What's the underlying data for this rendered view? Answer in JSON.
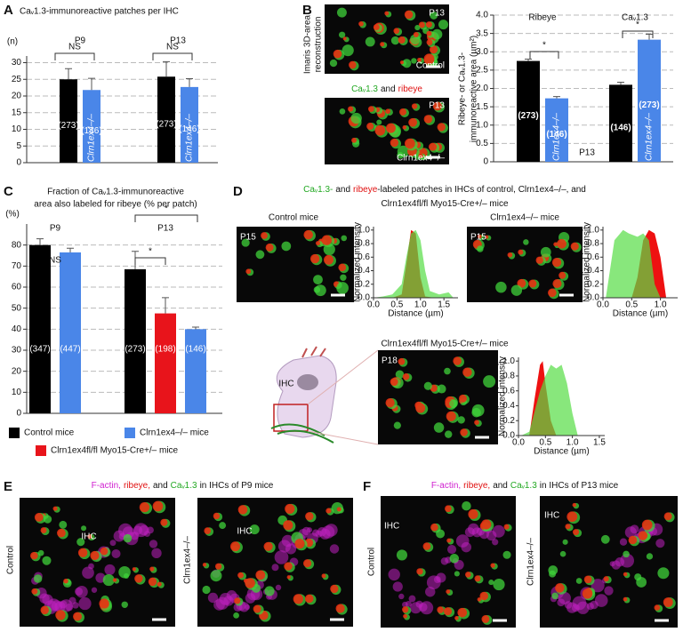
{
  "figure": {
    "panel_labels": [
      "A",
      "B",
      "C",
      "D",
      "E",
      "F"
    ],
    "b_side_label": [
      "Imaris 3D-area",
      "reconstruction"
    ],
    "b_image_ages": [
      "P13",
      "P13"
    ],
    "b_image_labels": [
      "Control",
      "Clrn1ex4–/–"
    ],
    "b_caption": [
      {
        "text": "Caᵥ1.3",
        "color": "#22a822"
      },
      {
        "text": "and",
        "color": "#111111"
      },
      {
        "text": "ribeye",
        "color": "#e01010"
      }
    ],
    "b_p13": "P13",
    "d_title": [
      [
        {
          "text": "Caᵥ1.3-",
          "color": "#22a822"
        },
        {
          "text": "and",
          "color": "#111111"
        },
        {
          "text": "ribeye",
          "color": "#e01010"
        },
        {
          "text": "-labeled patches in IHCs of control, Clrn1ex4–/–, and",
          "color": "#111111"
        }
      ],
      [
        {
          "text": "Clrn1ex4fl/fl Myo15-Cre+/– mice",
          "color": "#111111"
        }
      ]
    ],
    "d_image_labels": [
      "Control mice",
      "Clrn1ex4–/– mice",
      "Clrn1ex4fl/fl Myo15-Cre+/– mice"
    ],
    "d_ages": [
      "P15",
      "P15",
      "P18"
    ],
    "d_ihc": "IHC",
    "e_caption": [
      {
        "text": "F-actin,",
        "color": "#d020d0"
      },
      {
        "text": "ribeye,",
        "color": "#e01010"
      },
      {
        "text": "and",
        "color": "#111111"
      },
      {
        "text": "Caᵥ1.3",
        "color": "#22a822"
      },
      {
        "text": "in IHCs of P9 mice",
        "color": "#111111"
      }
    ],
    "e_image_labels": [
      "Control",
      "Clrn1ex4–/–"
    ],
    "e_ihc": [
      "IHC",
      "IHC"
    ],
    "f_caption": [
      {
        "text": "F-actin,",
        "color": "#d020d0"
      },
      {
        "text": "ribeye,",
        "color": "#e01010"
      },
      {
        "text": "and",
        "color": "#111111"
      },
      {
        "text": "Caᵥ1.3",
        "color": "#22a822"
      },
      {
        "text": "in IHCs of P13 mice",
        "color": "#111111"
      }
    ],
    "f_image_labels": [
      "Control",
      "Clrn1ex4–/–"
    ],
    "f_ihc": [
      "IHC",
      "IHC"
    ]
  },
  "chart_data": [
    {
      "type": "bar",
      "title": "Caᵥ1.3-immunoreactive patches per IHC",
      "ylabel": [
        "(n)"
      ],
      "categories": [
        "P9",
        "P13"
      ],
      "series": [
        {
          "color": "#000000",
          "values": [
            25,
            25.8
          ],
          "errors": [
            3.2,
            4.5
          ],
          "n_labels": [
            "(273)",
            "(273)"
          ]
        },
        {
          "name": "Clrn1ex4–/–",
          "color": "#4a86e8",
          "values": [
            21.8,
            22.7
          ],
          "errors": [
            3.5,
            2.5
          ],
          "n_labels": [
            "(146)",
            "(146)"
          ]
        }
      ],
      "annotations": [
        "NS",
        "NS"
      ],
      "ylim": [
        0,
        32
      ],
      "yticks": [
        0,
        5,
        10,
        15,
        20,
        25,
        30
      ],
      "grid": true
    },
    {
      "type": "bar",
      "ylabel": [
        "Ribeye- or Caᵥ1.3-",
        "immunoreactive area (µm²)"
      ],
      "categories": [
        "Ribeye",
        "Caᵥ1.3"
      ],
      "series": [
        {
          "color": "#000000",
          "values": [
            2.75,
            2.1
          ],
          "errors": [
            0.05,
            0.07
          ],
          "n_labels": [
            "(273)",
            "(146)"
          ]
        },
        {
          "name": "Clrn1ex4–/–",
          "color": "#4a86e8",
          "values": [
            1.73,
            3.33
          ],
          "errors": [
            0.05,
            0.15
          ],
          "n_labels": [
            "(146)",
            "(273)"
          ]
        }
      ],
      "annotations": [
        "*",
        "*"
      ],
      "ylim": [
        0,
        4.0
      ],
      "yticks": [
        0,
        0.5,
        {
          "value": 1,
          "label": "1.0"
        },
        1.5,
        {
          "value": 2,
          "label": "2.0"
        },
        2.5,
        {
          "value": 3,
          "label": "3.0"
        },
        3.5,
        {
          "value": 4,
          "label": "4.0"
        }
      ],
      "grid": true
    },
    {
      "type": "bar",
      "title": [
        "Fraction of Caᵥ1.3-immunoreactive",
        "area also labeled for ribeye (% per patch)"
      ],
      "ylabel": [
        "(%)"
      ],
      "categories": [
        "P9",
        "P13"
      ],
      "series": [
        {
          "name": "Control mice",
          "color": "#000000",
          "values": [
            80,
            68.5
          ],
          "errors": [
            3,
            8.5
          ],
          "n_labels": [
            "(347)",
            "(273)"
          ]
        },
        {
          "name": "Clrn1ex4fl/fl Myo15-Cre+/– mice",
          "color": "#e8141b",
          "values": [
            null,
            47.5
          ],
          "errors": [
            null,
            7.5
          ],
          "n_labels": [
            null,
            "(198)"
          ]
        },
        {
          "name": "Clrn1ex4–/– mice",
          "color": "#4a86e8",
          "values": [
            76.5,
            40
          ],
          "errors": [
            2,
            1
          ],
          "n_labels": [
            "(447)",
            "(146)"
          ]
        }
      ],
      "annotations": [
        "NS",
        "*",
        "*"
      ],
      "ylim": [
        0,
        90
      ],
      "yticks": [
        0,
        10,
        20,
        30,
        40,
        50,
        60,
        70,
        80
      ],
      "grid": true,
      "legend": "bottom"
    },
    {
      "type": "area",
      "ylabel": "Normalized intensity",
      "xlabel": "Distance (µm)",
      "series": [
        {
          "color": "#ee1111",
          "x": [
            0.4,
            0.6,
            0.7,
            0.8,
            0.9,
            1.0,
            1.1,
            1.3
          ],
          "values": [
            0,
            0.05,
            0.5,
            1.0,
            0.95,
            0.3,
            0.02,
            0
          ]
        },
        {
          "color": "#55dd44",
          "x": [
            0,
            0.2,
            0.4,
            0.6,
            0.7,
            0.8,
            0.9,
            1.0,
            1.1,
            1.2,
            1.4,
            1.6,
            1.7
          ],
          "values": [
            0,
            0.02,
            0.05,
            0.2,
            0.6,
            0.95,
            1.0,
            0.85,
            0.4,
            0.1,
            0.05,
            0.08,
            0
          ]
        }
      ],
      "xlim": [
        0,
        1.8
      ],
      "xticks": [
        {
          "value": 0,
          "label": "0.0"
        },
        0.5,
        {
          "value": 1,
          "label": "1.0"
        },
        1.5
      ],
      "ylim": [
        0,
        1.05
      ],
      "yticks": [
        {
          "value": 0,
          "label": "0.0"
        },
        0.2,
        0.4,
        0.6,
        0.8,
        {
          "value": 1,
          "label": "1.0"
        }
      ]
    },
    {
      "type": "area",
      "ylabel": "Normalized intensity",
      "xlabel": "Distance (µm)",
      "series": [
        {
          "color": "#ee1111",
          "x": [
            0.5,
            0.6,
            0.7,
            0.8,
            0.9,
            1.0,
            1.1
          ],
          "values": [
            0,
            0.3,
            0.85,
            1.0,
            0.95,
            0.6,
            0
          ]
        },
        {
          "color": "#55dd44",
          "x": [
            0.05,
            0.2,
            0.35,
            0.45,
            0.6,
            0.7,
            0.8,
            0.9,
            1.0
          ],
          "values": [
            0,
            0.85,
            1.0,
            0.95,
            0.9,
            0.95,
            0.85,
            0.2,
            0
          ]
        }
      ],
      "xlim": [
        0,
        1.3
      ],
      "xticks": [
        {
          "value": 0,
          "label": "0.0"
        },
        0.5,
        {
          "value": 1,
          "label": "1.0"
        }
      ],
      "ylim": [
        0,
        1.05
      ],
      "yticks": [
        {
          "value": 0,
          "label": "0.0"
        },
        0.2,
        0.4,
        0.6,
        0.8,
        {
          "value": 1,
          "label": "1.0"
        }
      ]
    },
    {
      "type": "area",
      "ylabel": "Normalized intensity",
      "xlabel": "Distance (µm)",
      "series": [
        {
          "color": "#ee1111",
          "x": [
            0.2,
            0.3,
            0.4,
            0.45,
            0.5,
            0.6,
            0.7
          ],
          "values": [
            0,
            0.5,
            0.95,
            1.0,
            0.7,
            0.2,
            0
          ]
        },
        {
          "color": "#55dd44",
          "x": [
            0.05,
            0.2,
            0.4,
            0.5,
            0.6,
            0.7,
            0.8,
            0.9,
            1.0,
            1.1
          ],
          "values": [
            0,
            0.05,
            0.6,
            0.8,
            0.95,
            0.9,
            0.95,
            0.7,
            0.3,
            0
          ]
        }
      ],
      "xlim": [
        0,
        1.6
      ],
      "xticks": [
        {
          "value": 0,
          "label": "0.0"
        },
        0.5,
        {
          "value": 1,
          "label": "1.0"
        },
        1.5
      ],
      "ylim": [
        0,
        1.05
      ],
      "yticks": [
        {
          "value": 0,
          "label": "0.0"
        },
        0.2,
        0.4,
        0.6,
        0.8,
        {
          "value": 1,
          "label": "1.0"
        }
      ]
    }
  ]
}
